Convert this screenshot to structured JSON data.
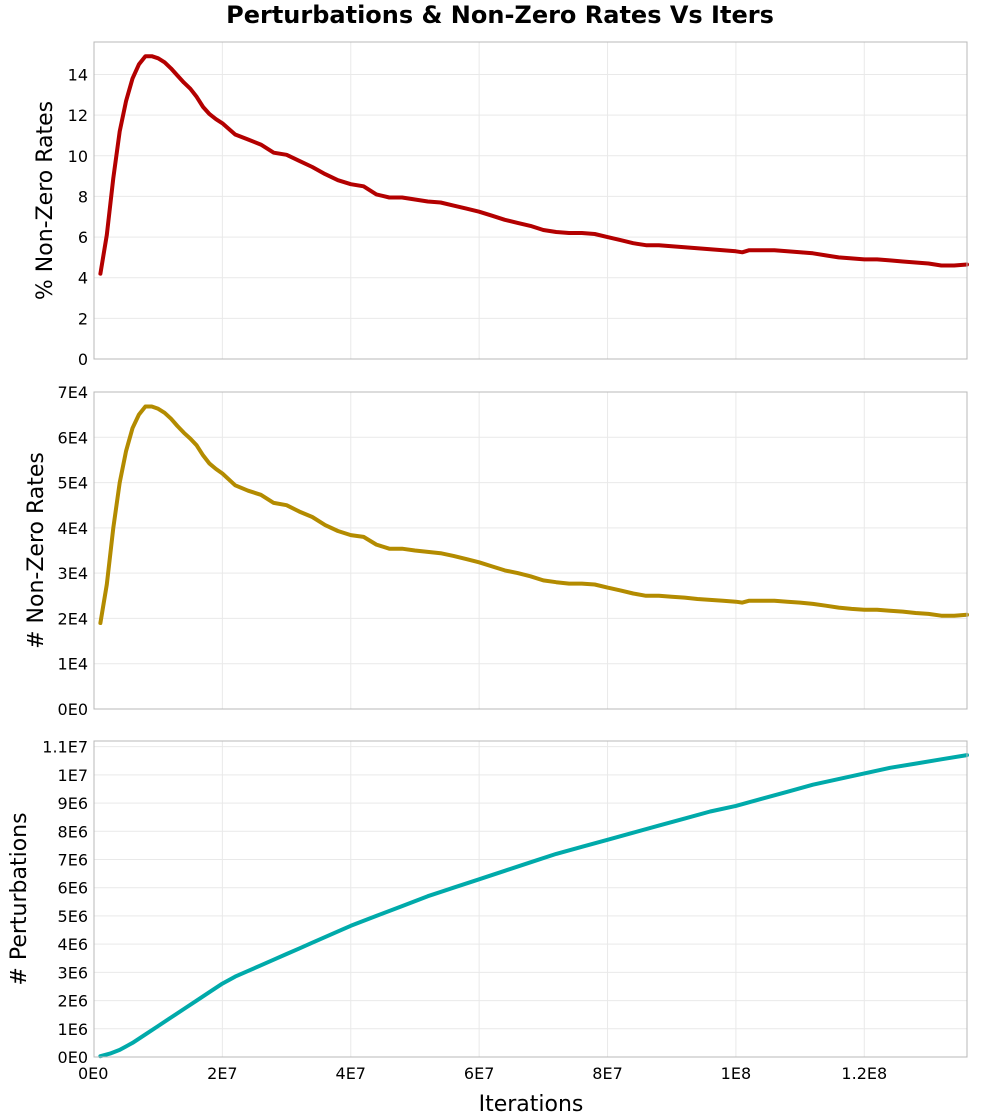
{
  "figure": {
    "title": "Perturbations & Non-Zero Rates Vs Iters",
    "xlabel": "Iterations"
  },
  "chart_data": [
    {
      "type": "line",
      "title": "Perturbations & Non-Zero Rates Vs Iters",
      "xlabel": "",
      "ylabel": "% Non-Zero Rates",
      "xlim": [
        0,
        136000000
      ],
      "ylim": [
        0,
        15.6
      ],
      "grid": true,
      "xticks": [
        0,
        20000000,
        40000000,
        60000000,
        80000000,
        100000000,
        120000000
      ],
      "xtick_labels": [
        "",
        "",
        "",
        "",
        "",
        "",
        ""
      ],
      "yticks": [
        0,
        2,
        4,
        6,
        8,
        10,
        12,
        14
      ],
      "ytick_labels": [
        "0",
        "2",
        "4",
        "6",
        "8",
        "10",
        "12",
        "14"
      ],
      "series": [
        {
          "name": "% Non-Zero Rates",
          "color": "#b30000",
          "x": [
            1000000,
            2000000,
            3000000,
            4000000,
            5000000,
            6000000,
            7000000,
            8000000,
            9000000,
            10000000,
            11000000,
            12000000,
            13000000,
            14000000,
            15000000,
            16000000,
            17000000,
            18000000,
            19000000,
            20000000,
            22000000,
            24000000,
            26000000,
            28000000,
            30000000,
            32000000,
            34000000,
            36000000,
            38000000,
            40000000,
            42000000,
            44000000,
            46000000,
            48000000,
            50000000,
            52000000,
            54000000,
            56000000,
            58000000,
            60000000,
            62000000,
            64000000,
            66000000,
            68000000,
            70000000,
            72000000,
            74000000,
            76000000,
            78000000,
            80000000,
            82000000,
            84000000,
            86000000,
            88000000,
            90000000,
            92000000,
            94000000,
            96000000,
            98000000,
            100000000,
            101000000,
            102000000,
            104000000,
            106000000,
            108000000,
            110000000,
            112000000,
            114000000,
            116000000,
            118000000,
            120000000,
            122000000,
            124000000,
            126000000,
            128000000,
            130000000,
            132000000,
            134000000,
            136000000
          ],
          "y": [
            4.2,
            6.1,
            8.9,
            11.2,
            12.7,
            13.8,
            14.5,
            14.9,
            14.9,
            14.8,
            14.6,
            14.3,
            13.95,
            13.6,
            13.3,
            12.9,
            12.4,
            12.05,
            11.8,
            11.6,
            11.05,
            10.8,
            10.55,
            10.15,
            10.05,
            9.75,
            9.45,
            9.1,
            8.8,
            8.6,
            8.5,
            8.1,
            7.95,
            7.95,
            7.85,
            7.75,
            7.7,
            7.55,
            7.4,
            7.25,
            7.05,
            6.85,
            6.7,
            6.55,
            6.35,
            6.25,
            6.2,
            6.2,
            6.15,
            6.0,
            5.85,
            5.7,
            5.6,
            5.6,
            5.55,
            5.5,
            5.45,
            5.4,
            5.35,
            5.3,
            5.25,
            5.35,
            5.35,
            5.35,
            5.3,
            5.25,
            5.2,
            5.1,
            5.0,
            4.95,
            4.9,
            4.9,
            4.85,
            4.8,
            4.75,
            4.7,
            4.6,
            4.6,
            4.65
          ]
        }
      ]
    },
    {
      "type": "line",
      "xlabel": "",
      "ylabel": "# Non-Zero Rates",
      "xlim": [
        0,
        136000000
      ],
      "ylim": [
        0,
        70000
      ],
      "grid": true,
      "xticks": [
        0,
        20000000,
        40000000,
        60000000,
        80000000,
        100000000,
        120000000
      ],
      "xtick_labels": [
        "",
        "",
        "",
        "",
        "",
        "",
        ""
      ],
      "yticks": [
        0,
        10000,
        20000,
        30000,
        40000,
        50000,
        60000,
        70000
      ],
      "ytick_labels": [
        "0E0",
        "1E4",
        "2E4",
        "3E4",
        "4E4",
        "5E4",
        "6E4",
        "7E4"
      ],
      "series": [
        {
          "name": "# Non-Zero Rates",
          "color": "#b38b00",
          "x": [
            1000000,
            2000000,
            3000000,
            4000000,
            5000000,
            6000000,
            7000000,
            8000000,
            9000000,
            10000000,
            11000000,
            12000000,
            13000000,
            14000000,
            15000000,
            16000000,
            17000000,
            18000000,
            19000000,
            20000000,
            22000000,
            24000000,
            26000000,
            28000000,
            30000000,
            32000000,
            34000000,
            36000000,
            38000000,
            40000000,
            42000000,
            44000000,
            46000000,
            48000000,
            50000000,
            52000000,
            54000000,
            56000000,
            58000000,
            60000000,
            62000000,
            64000000,
            66000000,
            68000000,
            70000000,
            72000000,
            74000000,
            76000000,
            78000000,
            80000000,
            82000000,
            84000000,
            86000000,
            88000000,
            90000000,
            92000000,
            94000000,
            96000000,
            98000000,
            100000000,
            101000000,
            102000000,
            104000000,
            106000000,
            108000000,
            110000000,
            112000000,
            114000000,
            116000000,
            118000000,
            120000000,
            122000000,
            124000000,
            126000000,
            128000000,
            130000000,
            132000000,
            134000000,
            136000000
          ],
          "y": [
            19000,
            27500,
            40000,
            50000,
            57000,
            62000,
            65000,
            66800,
            66800,
            66300,
            65400,
            64100,
            62500,
            61000,
            59700,
            58200,
            56000,
            54200,
            53000,
            52000,
            49400,
            48200,
            47300,
            45500,
            45000,
            43600,
            42400,
            40600,
            39300,
            38400,
            38000,
            36300,
            35400,
            35400,
            35000,
            34700,
            34400,
            33800,
            33100,
            32400,
            31500,
            30600,
            30000,
            29300,
            28400,
            28000,
            27700,
            27700,
            27500,
            26800,
            26200,
            25500,
            25000,
            25000,
            24800,
            24600,
            24300,
            24100,
            23900,
            23700,
            23500,
            23900,
            23900,
            23900,
            23700,
            23500,
            23200,
            22800,
            22400,
            22100,
            21900,
            21900,
            21700,
            21500,
            21200,
            21000,
            20600,
            20600,
            20800
          ]
        }
      ]
    },
    {
      "type": "line",
      "xlabel": "Iterations",
      "ylabel": "# Perturbations",
      "xlim": [
        0,
        136000000
      ],
      "ylim": [
        0,
        11200000
      ],
      "grid": true,
      "xticks": [
        0,
        20000000,
        40000000,
        60000000,
        80000000,
        100000000,
        120000000
      ],
      "xtick_labels": [
        "0E0",
        "2E7",
        "4E7",
        "6E7",
        "8E7",
        "1E8",
        "1.2E8"
      ],
      "yticks": [
        0,
        1000000,
        2000000,
        3000000,
        4000000,
        5000000,
        6000000,
        7000000,
        8000000,
        9000000,
        10000000,
        11000000
      ],
      "ytick_labels": [
        "0E0",
        "1E6",
        "2E6",
        "3E6",
        "4E6",
        "5E6",
        "6E6",
        "7E6",
        "8E6",
        "9E6",
        "1E7",
        "1.1E7"
      ],
      "series": [
        {
          "name": "# Perturbations",
          "color": "#00aaaa",
          "x": [
            1000000,
            2500000,
            4000000,
            6000000,
            8000000,
            10000000,
            12000000,
            14000000,
            16000000,
            18000000,
            20000000,
            22000000,
            24000000,
            26000000,
            28000000,
            30000000,
            32000000,
            34000000,
            36000000,
            38000000,
            40000000,
            44000000,
            48000000,
            52000000,
            56000000,
            60000000,
            64000000,
            68000000,
            72000000,
            76000000,
            80000000,
            84000000,
            88000000,
            92000000,
            96000000,
            100000000,
            104000000,
            108000000,
            112000000,
            116000000,
            120000000,
            124000000,
            128000000,
            132000000,
            136000000
          ],
          "y": [
            30000,
            120000,
            250000,
            500000,
            800000,
            1100000,
            1400000,
            1700000,
            2000000,
            2300000,
            2600000,
            2850000,
            3050000,
            3250000,
            3450000,
            3650000,
            3850000,
            4050000,
            4250000,
            4450000,
            4650000,
            5000000,
            5350000,
            5700000,
            6000000,
            6300000,
            6600000,
            6900000,
            7200000,
            7450000,
            7700000,
            7950000,
            8200000,
            8450000,
            8700000,
            8900000,
            9150000,
            9400000,
            9650000,
            9850000,
            10050000,
            10250000,
            10400000,
            10550000,
            10700000
          ]
        }
      ]
    }
  ]
}
